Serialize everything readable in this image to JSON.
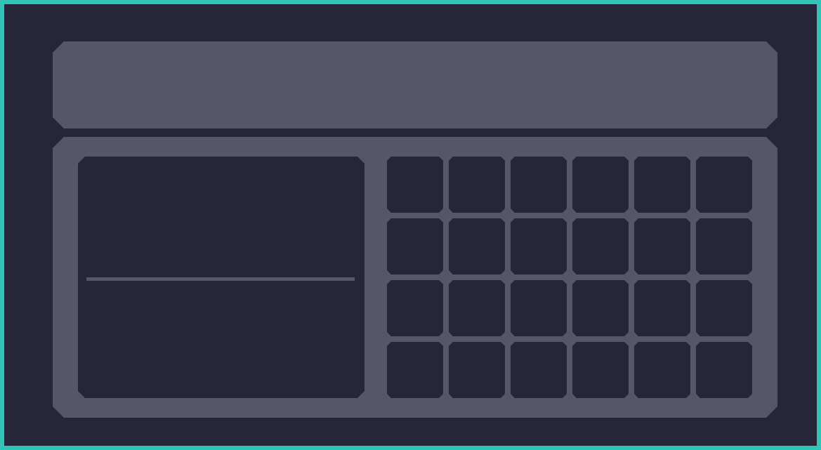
{
  "colors": {
    "background": "#26263a",
    "panel": "#56556a",
    "frame_border": "#2ec4b6",
    "slot": "#26263a"
  },
  "header": {
    "title": ""
  },
  "preview": {
    "item_name": "",
    "item_description": ""
  },
  "inventory": {
    "columns": 6,
    "rows": 4,
    "slots": [
      {
        "item": ""
      },
      {
        "item": ""
      },
      {
        "item": ""
      },
      {
        "item": ""
      },
      {
        "item": ""
      },
      {
        "item": ""
      },
      {
        "item": ""
      },
      {
        "item": ""
      },
      {
        "item": ""
      },
      {
        "item": ""
      },
      {
        "item": ""
      },
      {
        "item": ""
      },
      {
        "item": ""
      },
      {
        "item": ""
      },
      {
        "item": ""
      },
      {
        "item": ""
      },
      {
        "item": ""
      },
      {
        "item": ""
      },
      {
        "item": ""
      },
      {
        "item": ""
      },
      {
        "item": ""
      },
      {
        "item": ""
      },
      {
        "item": ""
      },
      {
        "item": ""
      }
    ]
  }
}
